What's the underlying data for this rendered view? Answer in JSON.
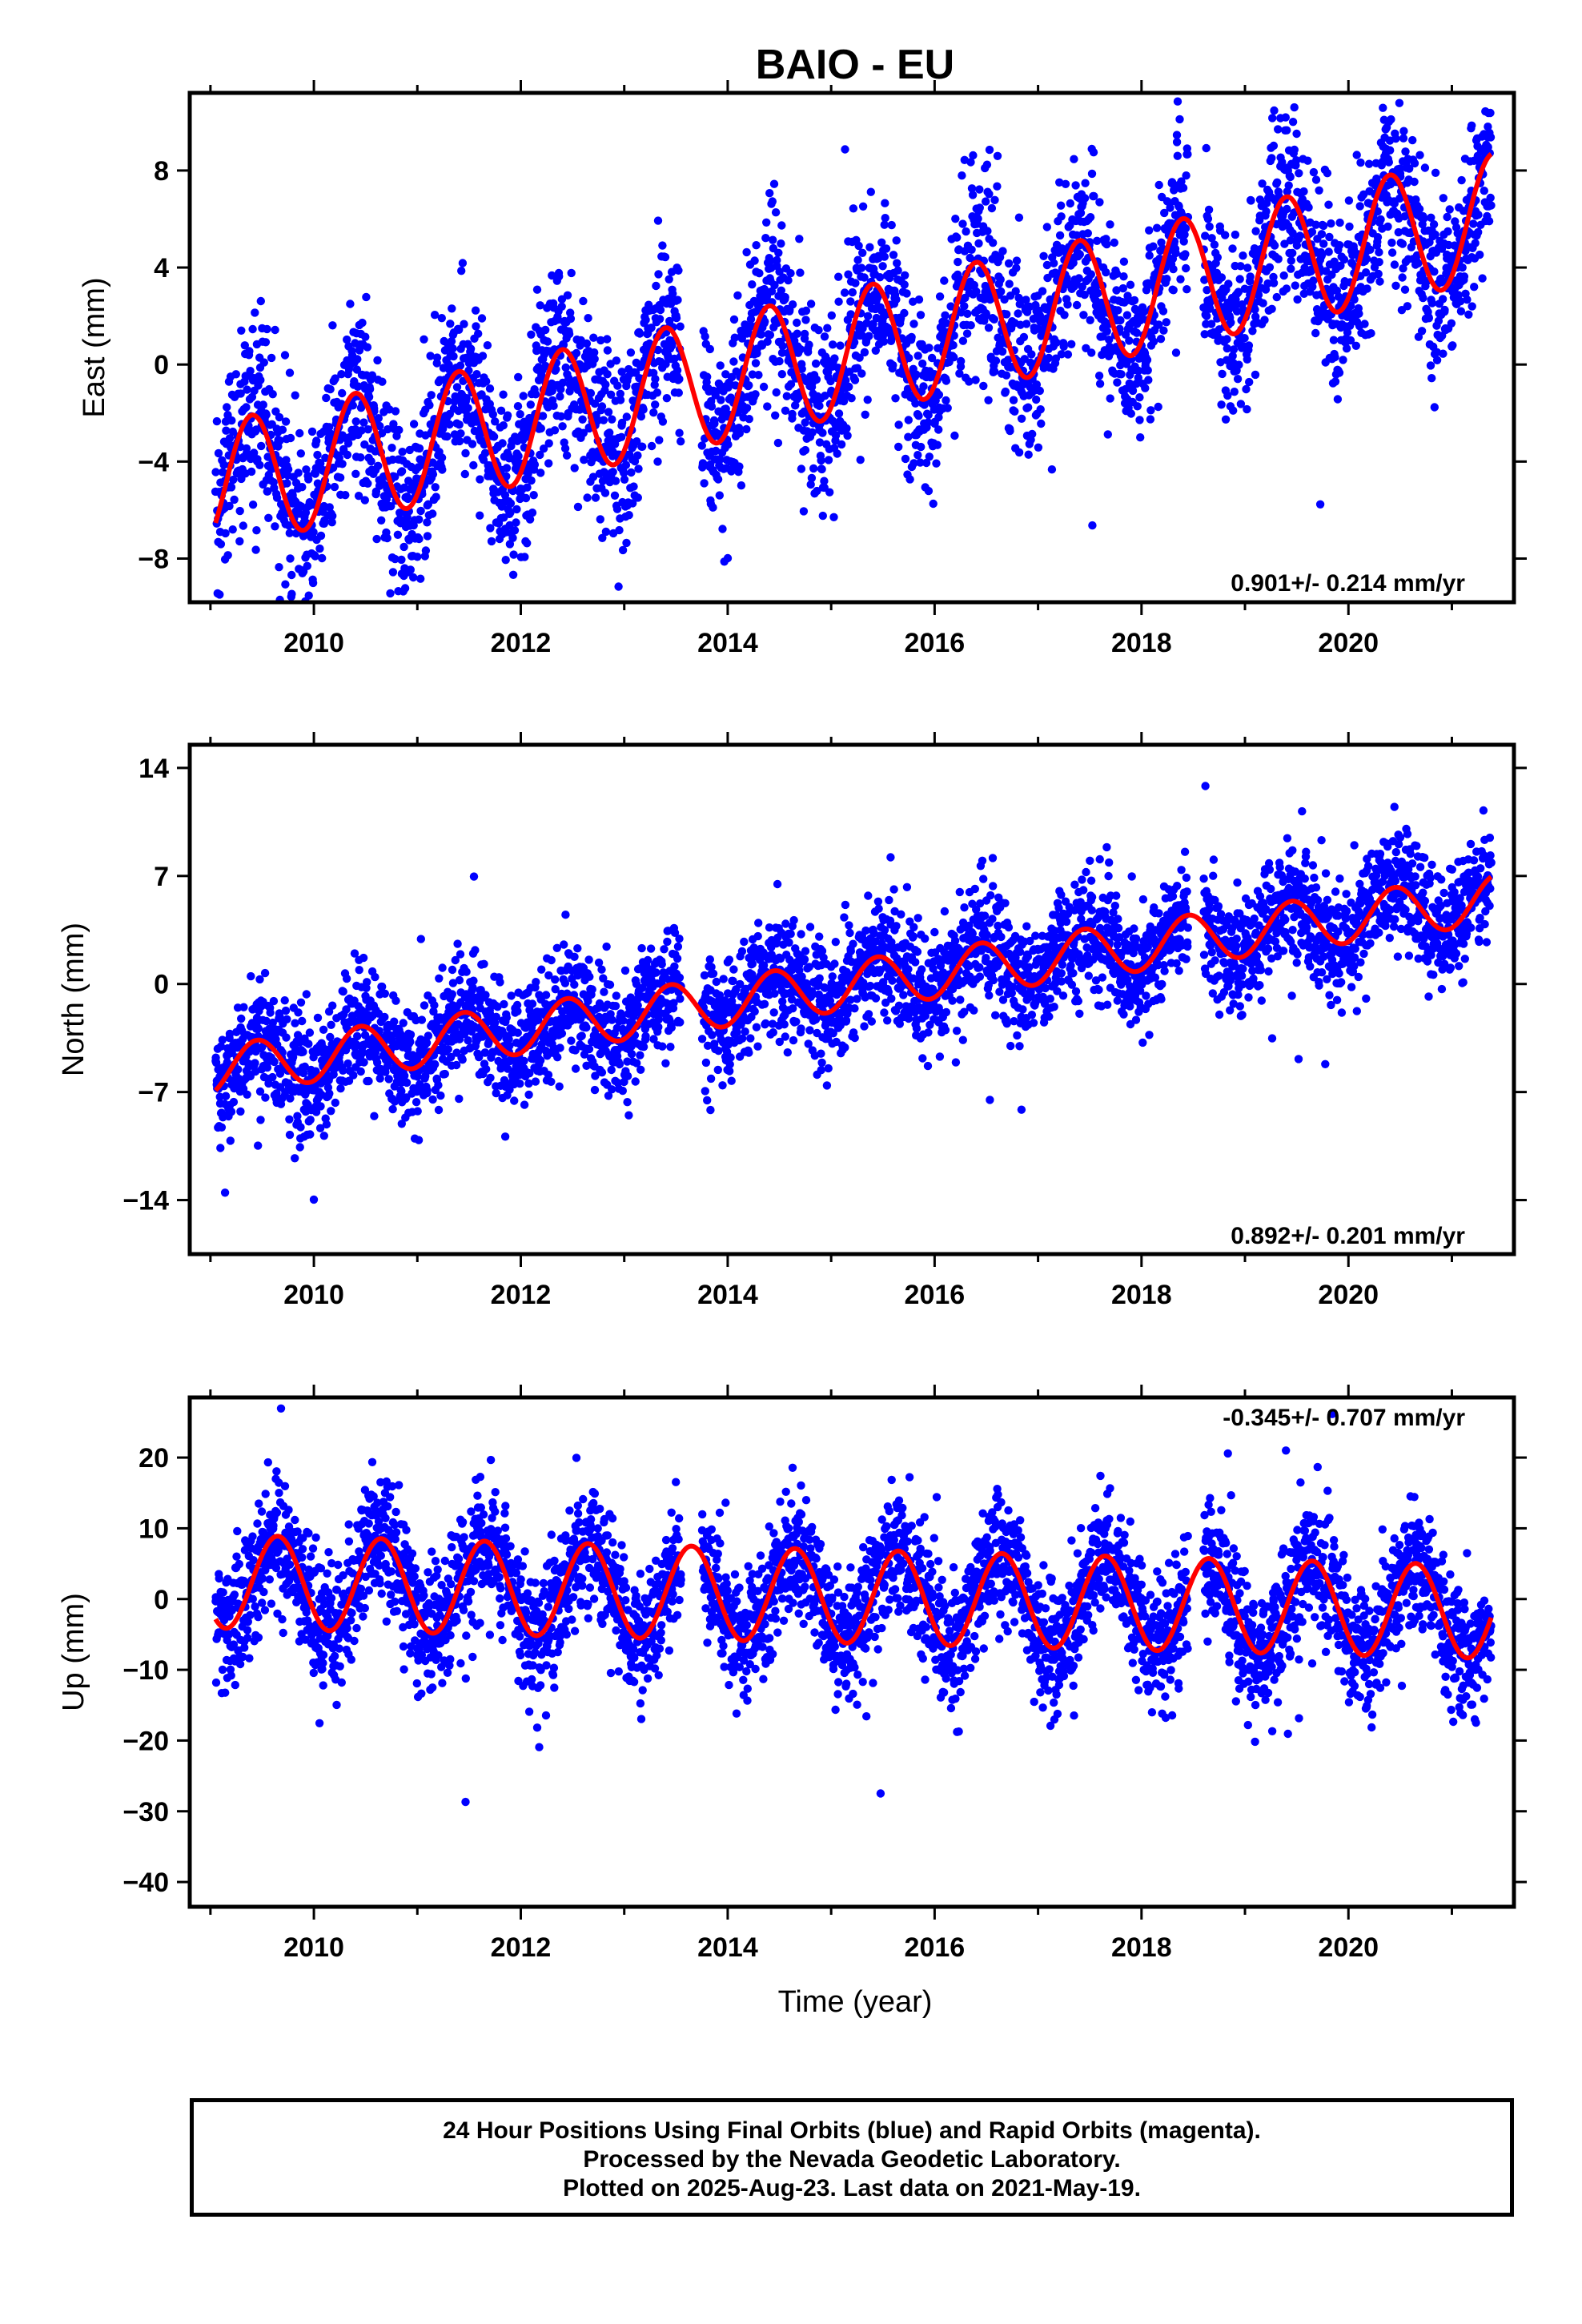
{
  "title": "BAIO - EU",
  "xlabel": "Time (year)",
  "footer": {
    "line1": "24 Hour Positions Using Final Orbits (blue) and Rapid Orbits (magenta).",
    "line2": "Processed by the Nevada Geodetic Laboratory.",
    "line3": "Plotted on 2025-Aug-23. Last data on 2021-May-19."
  },
  "colors": {
    "data": "#0000ff",
    "fit": "#ff0000",
    "frame": "#000000"
  },
  "chart_data": [
    {
      "type": "scatter",
      "component": "east",
      "ylabel": "East (mm)",
      "xlim": [
        2008.8,
        2021.6
      ],
      "ylim": [
        -9.8,
        11.2
      ],
      "yticks": [
        -8,
        -4,
        0,
        4,
        8
      ],
      "xticks": [
        2010,
        2012,
        2014,
        2016,
        2018,
        2020
      ],
      "x_tick_labels": [
        "2010",
        "2012",
        "2014",
        "2016",
        "2018",
        "2020"
      ],
      "y_tick_labels": [
        "−8",
        "−4",
        "0",
        "4",
        "8"
      ],
      "rate": "0.901+/- 0.214 mm/yr",
      "data_start": 2009.05,
      "data_end": 2021.38,
      "gaps": [
        [
          2013.55,
          2013.75
        ],
        [
          2018.45,
          2018.6
        ]
      ],
      "fit": {
        "t0": 2009.05,
        "offset": -5.0,
        "slope": 0.9,
        "amplitude": 2.6,
        "peak_phase": 0.4
      },
      "scatter_sd": 1.9,
      "points_count": 3900,
      "series": [
        {
          "name": "24 Hour Positions Using Final Orbits (blue)",
          "kind": "points"
        },
        {
          "name": "fit",
          "kind": "line"
        }
      ]
    },
    {
      "type": "scatter",
      "component": "north",
      "ylabel": "North (mm)",
      "xlim": [
        2008.8,
        2021.6
      ],
      "ylim": [
        -17.5,
        15.5
      ],
      "yticks": [
        -14,
        -7,
        0,
        7,
        14
      ],
      "xticks": [
        2010,
        2012,
        2014,
        2016,
        2018,
        2020
      ],
      "x_tick_labels": [
        "2010",
        "2012",
        "2014",
        "2016",
        "2018",
        "2020"
      ],
      "y_tick_labels": [
        "−14",
        "−7",
        "0",
        "7",
        "14"
      ],
      "rate": "0.892+/- 0.201 mm/yr",
      "data_start": 2009.05,
      "data_end": 2021.38,
      "gaps": [
        [
          2013.55,
          2013.75
        ],
        [
          2018.45,
          2018.6
        ]
      ],
      "fit": {
        "t0": 2009.05,
        "offset": -5.6,
        "slope": 0.9,
        "amplitude": 1.6,
        "peak_phase": 0.45
      },
      "scatter_sd": 1.9,
      "points_count": 3900,
      "series": [
        {
          "name": "24 Hour Positions Using Final Orbits (blue)",
          "kind": "points"
        },
        {
          "name": "fit",
          "kind": "line"
        }
      ]
    },
    {
      "type": "scatter",
      "component": "up",
      "ylabel": "Up (mm)",
      "xlim": [
        2008.8,
        2021.6
      ],
      "ylim": [
        -43.5,
        28.5
      ],
      "yticks": [
        -40,
        -30,
        -20,
        -10,
        0,
        10,
        20
      ],
      "xticks": [
        2010,
        2012,
        2014,
        2016,
        2018,
        2020
      ],
      "x_tick_labels": [
        "2010",
        "2012",
        "2014",
        "2016",
        "2018",
        "2020"
      ],
      "y_tick_labels": [
        "−40",
        "−30",
        "−20",
        "−10",
        "0",
        "10",
        "20"
      ],
      "rate": "-0.345+/- 0.707 mm/yr",
      "data_start": 2009.05,
      "data_end": 2021.38,
      "gaps": [
        [
          2013.55,
          2013.75
        ],
        [
          2018.45,
          2018.6
        ]
      ],
      "fit": {
        "t0": 2009.05,
        "offset": 2.5,
        "slope": -0.35,
        "amplitude": 6.6,
        "peak_phase": 0.65
      },
      "scatter_sd": 4.5,
      "points_count": 3900,
      "series": [
        {
          "name": "24 Hour Positions Using Final Orbits (blue)",
          "kind": "points"
        },
        {
          "name": "fit",
          "kind": "line"
        }
      ]
    }
  ]
}
